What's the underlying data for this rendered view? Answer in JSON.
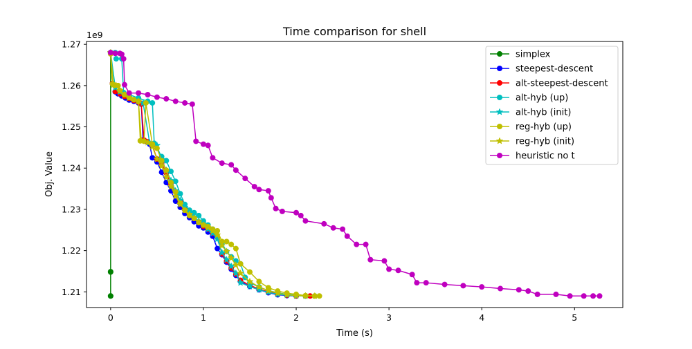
{
  "chart_data": {
    "type": "line",
    "title": "Time comparison for shell",
    "xlabel": "Time (s)",
    "ylabel": "Obj. Value",
    "y_offset_label": "1e9",
    "xlim": [
      -0.26,
      5.52
    ],
    "ylim": [
      1.2062,
      1.2707
    ],
    "xticks": [
      0,
      1,
      2,
      3,
      4,
      5
    ],
    "xtick_labels": [
      "0",
      "1",
      "2",
      "3",
      "4",
      "5"
    ],
    "yticks": [
      1.21,
      1.22,
      1.23,
      1.24,
      1.25,
      1.26,
      1.27
    ],
    "ytick_labels": [
      "1.21",
      "1.22",
      "1.23",
      "1.24",
      "1.25",
      "1.26",
      "1.27"
    ],
    "grid": false,
    "legend_position": "upper right",
    "series": [
      {
        "name": "simplex",
        "color": "#008000",
        "marker": "circle",
        "x": [
          0,
          0,
          0.0,
          0.0,
          0.0
        ],
        "y": [
          1.268,
          1.2149,
          1.2148,
          1.209,
          1.209
        ]
      },
      {
        "name": "steepest-descent",
        "color": "#0000ff",
        "marker": "circle",
        "x": [
          0.0,
          0.02,
          0.05,
          0.08,
          0.12,
          0.16,
          0.2,
          0.25,
          0.3,
          0.33,
          0.35,
          0.38,
          0.42,
          0.45,
          0.5,
          0.55,
          0.6,
          0.65,
          0.7,
          0.75,
          0.8,
          0.85,
          0.9,
          0.95,
          1.0,
          1.05,
          1.1,
          1.15,
          1.2,
          1.25,
          1.3,
          1.35,
          1.4,
          1.5,
          1.6,
          1.7,
          1.8,
          1.9,
          2.0,
          2.1
        ],
        "y": [
          1.268,
          1.2605,
          1.2585,
          1.258,
          1.2575,
          1.257,
          1.2565,
          1.2562,
          1.2558,
          1.2555,
          1.2468,
          1.2465,
          1.2458,
          1.2425,
          1.2415,
          1.239,
          1.2365,
          1.2345,
          1.232,
          1.2305,
          1.229,
          1.228,
          1.227,
          1.226,
          1.2255,
          1.2245,
          1.2235,
          1.2205,
          1.219,
          1.2172,
          1.2155,
          1.214,
          1.2125,
          1.2113,
          1.2105,
          1.2098,
          1.2093,
          1.2091,
          1.209,
          1.209
        ]
      },
      {
        "name": "alt-steepest-descent",
        "color": "#ff0000",
        "marker": "circle",
        "x": [
          0.0,
          0.02,
          0.05,
          0.1,
          0.15,
          0.2,
          0.25,
          0.3,
          0.33,
          0.36,
          0.4,
          0.45,
          0.5,
          0.55,
          0.6,
          0.65,
          0.7,
          0.75,
          0.8,
          0.85,
          0.9,
          0.95,
          1.0,
          1.05,
          1.1,
          1.15,
          1.2,
          1.25,
          1.3,
          1.35,
          1.4,
          1.5,
          1.6,
          1.7,
          1.8,
          1.9,
          2.0,
          2.1,
          2.15
        ],
        "y": [
          1.268,
          1.2605,
          1.2586,
          1.258,
          1.2574,
          1.2569,
          1.2564,
          1.256,
          1.2556,
          1.2468,
          1.2464,
          1.2455,
          1.2422,
          1.2412,
          1.2388,
          1.2362,
          1.2342,
          1.2318,
          1.2302,
          1.2288,
          1.2278,
          1.2268,
          1.2259,
          1.2252,
          1.2242,
          1.2232,
          1.2192,
          1.2175,
          1.2158,
          1.2143,
          1.2128,
          1.2116,
          1.2107,
          1.21,
          1.2095,
          1.2092,
          1.209,
          1.209,
          1.209
        ]
      },
      {
        "name": "alt-hyb (up)",
        "color": "#00bfbf",
        "marker": "circle",
        "x": [
          0.0,
          0.05,
          0.06,
          0.12,
          0.14,
          0.2,
          0.3,
          0.4,
          0.45,
          0.47,
          0.55,
          0.6,
          0.65,
          0.7,
          0.75,
          0.8,
          0.85,
          0.9,
          0.95,
          1.0,
          1.05,
          1.1,
          1.15,
          1.2,
          1.25,
          1.3,
          1.35,
          1.4,
          1.45,
          1.5,
          1.6,
          1.7,
          1.8,
          1.9,
          2.0,
          2.1,
          2.2
        ],
        "y": [
          1.268,
          1.268,
          1.2665,
          1.2665,
          1.2583,
          1.2578,
          1.257,
          1.2562,
          1.2558,
          1.246,
          1.2428,
          1.2418,
          1.2392,
          1.2368,
          1.2338,
          1.2312,
          1.2298,
          1.2292,
          1.2285,
          1.2272,
          1.2262,
          1.2252,
          1.2235,
          1.2218,
          1.2198,
          1.2185,
          1.2175,
          1.2168,
          1.2135,
          1.2122,
          1.2112,
          1.2103,
          1.2098,
          1.2094,
          1.2092,
          1.209,
          1.209
        ]
      },
      {
        "name": "alt-hyb (init)",
        "color": "#00bfbf",
        "marker": "star",
        "x": [
          0.0,
          0.05,
          0.1,
          0.15,
          0.2,
          0.3,
          0.35,
          0.42,
          0.5,
          0.55,
          0.6,
          0.65,
          0.7,
          0.75,
          0.8,
          0.85,
          0.9,
          0.95,
          1.0,
          1.05,
          1.1,
          1.15,
          1.2,
          1.25,
          1.3,
          1.35,
          1.4,
          1.5,
          1.6,
          1.7,
          1.8,
          1.9,
          2.0,
          2.1
        ],
        "y": [
          1.268,
          1.2595,
          1.2585,
          1.2578,
          1.2572,
          1.2562,
          1.2558,
          1.2462,
          1.2455,
          1.242,
          1.2395,
          1.237,
          1.2345,
          1.2322,
          1.2305,
          1.2292,
          1.2282,
          1.2272,
          1.2262,
          1.2252,
          1.2242,
          1.2228,
          1.2195,
          1.2178,
          1.2162,
          1.2145,
          1.2122,
          1.2113,
          1.2105,
          1.2099,
          1.2094,
          1.2092,
          1.209,
          1.209
        ]
      },
      {
        "name": "reg-hyb (up)",
        "color": "#bfbf00",
        "marker": "circle",
        "x": [
          0.0,
          0.02,
          0.04,
          0.08,
          0.1,
          0.15,
          0.2,
          0.25,
          0.3,
          0.32,
          0.36,
          0.38,
          0.45,
          0.5,
          0.55,
          0.6,
          0.65,
          0.7,
          0.75,
          0.8,
          0.85,
          0.9,
          0.95,
          1.0,
          1.05,
          1.1,
          1.15,
          1.2,
          1.25,
          1.3,
          1.35,
          1.4,
          1.5,
          1.6,
          1.7,
          1.8,
          1.9,
          2.0,
          2.1,
          2.2,
          2.25
        ],
        "y": [
          1.2677,
          1.2604,
          1.2601,
          1.26,
          1.2588,
          1.2578,
          1.2571,
          1.2566,
          1.2562,
          1.2466,
          1.2465,
          1.2558,
          1.2458,
          1.2448,
          1.2418,
          1.2395,
          1.2365,
          1.2342,
          1.2315,
          1.2298,
          1.2285,
          1.2278,
          1.2268,
          1.2262,
          1.2258,
          1.2252,
          1.2248,
          1.2222,
          1.2222,
          1.2215,
          1.2205,
          1.2168,
          1.2148,
          1.2125,
          1.211,
          1.2102,
          1.2097,
          1.2094,
          1.2091,
          1.209,
          1.209
        ]
      },
      {
        "name": "reg-hyb (init)",
        "color": "#bfbf00",
        "marker": "star",
        "x": [
          0.0,
          0.03,
          0.06,
          0.1,
          0.15,
          0.2,
          0.3,
          0.33,
          0.4,
          0.45,
          0.5,
          0.55,
          0.6,
          0.65,
          0.7,
          0.75,
          0.8,
          0.85,
          0.9,
          0.95,
          1.0,
          1.05,
          1.1,
          1.15,
          1.2,
          1.25,
          1.3,
          1.35,
          1.4,
          1.5,
          1.6,
          1.7,
          1.8,
          1.9,
          2.0,
          2.1,
          2.2
        ],
        "y": [
          1.268,
          1.2602,
          1.26,
          1.2588,
          1.2578,
          1.257,
          1.2562,
          1.2468,
          1.2462,
          1.2452,
          1.2422,
          1.2405,
          1.2378,
          1.2355,
          1.2332,
          1.2312,
          1.2298,
          1.2288,
          1.2279,
          1.227,
          1.2262,
          1.2256,
          1.2248,
          1.2238,
          1.2212,
          1.2198,
          1.2182,
          1.2165,
          1.2145,
          1.2125,
          1.2112,
          1.2103,
          1.2097,
          1.2093,
          1.2091,
          1.209,
          1.209
        ]
      },
      {
        "name": "heuristic no t",
        "color": "#bf00bf",
        "marker": "circle",
        "x": [
          0.0,
          0.05,
          0.1,
          0.12,
          0.14,
          0.15,
          0.2,
          0.3,
          0.4,
          0.5,
          0.6,
          0.7,
          0.8,
          0.88,
          0.92,
          1.0,
          1.05,
          1.1,
          1.2,
          1.3,
          1.35,
          1.45,
          1.55,
          1.6,
          1.7,
          1.73,
          1.78,
          1.85,
          2.0,
          2.05,
          2.1,
          2.3,
          2.4,
          2.5,
          2.55,
          2.65,
          2.75,
          2.8,
          2.95,
          3.0,
          3.1,
          3.25,
          3.3,
          3.4,
          3.6,
          3.8,
          4.0,
          4.2,
          4.4,
          4.5,
          4.6,
          4.8,
          4.95,
          5.1,
          5.2,
          5.27
        ],
        "y": [
          1.268,
          1.2678,
          1.2678,
          1.2676,
          1.2665,
          1.2602,
          1.2582,
          1.2582,
          1.2578,
          1.2572,
          1.2568,
          1.2562,
          1.2558,
          1.2555,
          1.2465,
          1.2458,
          1.2455,
          1.2425,
          1.2412,
          1.2408,
          1.2395,
          1.2375,
          1.2355,
          1.2348,
          1.2345,
          1.2328,
          1.2302,
          1.2295,
          1.2292,
          1.2285,
          1.2272,
          1.2265,
          1.2255,
          1.2252,
          1.2235,
          1.2215,
          1.2215,
          1.2178,
          1.2175,
          1.2155,
          1.2152,
          1.2142,
          1.2122,
          1.2122,
          1.2118,
          1.2115,
          1.2112,
          1.2108,
          1.2105,
          1.2102,
          1.2094,
          1.2094,
          1.209,
          1.209,
          1.209,
          1.209
        ]
      }
    ]
  }
}
